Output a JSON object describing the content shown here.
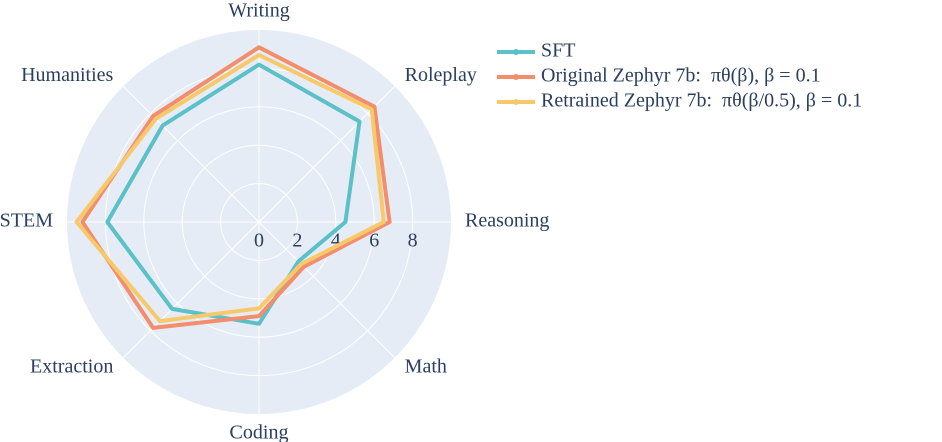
{
  "chart_data": {
    "type": "radar",
    "categories": [
      "Writing",
      "Roleplay",
      "Reasoning",
      "Math",
      "Coding",
      "Extraction",
      "STEM",
      "Humanities"
    ],
    "series": [
      {
        "name": "SFT",
        "color": "#5bc0c8",
        "values": [
          8.2,
          7.4,
          4.5,
          2.9,
          5.3,
          6.4,
          7.9,
          7.1
        ]
      },
      {
        "name": "Original Zephyr 7b:  πθ(β), β = 0.1",
        "color": "#f28e6b",
        "values": [
          9.1,
          8.5,
          6.8,
          3.3,
          4.9,
          7.8,
          9.2,
          7.8
        ]
      },
      {
        "name": "Retrained Zephyr 7b:  πθ(β/0.5), β = 0.1",
        "color": "#f7c96b",
        "values": [
          8.7,
          8.3,
          6.5,
          3.1,
          4.5,
          7.3,
          9.5,
          7.6
        ]
      }
    ],
    "rlim": [
      0,
      10
    ],
    "rticks": [
      0,
      2,
      4,
      6,
      8
    ],
    "grid": true,
    "legend": "upper right"
  }
}
